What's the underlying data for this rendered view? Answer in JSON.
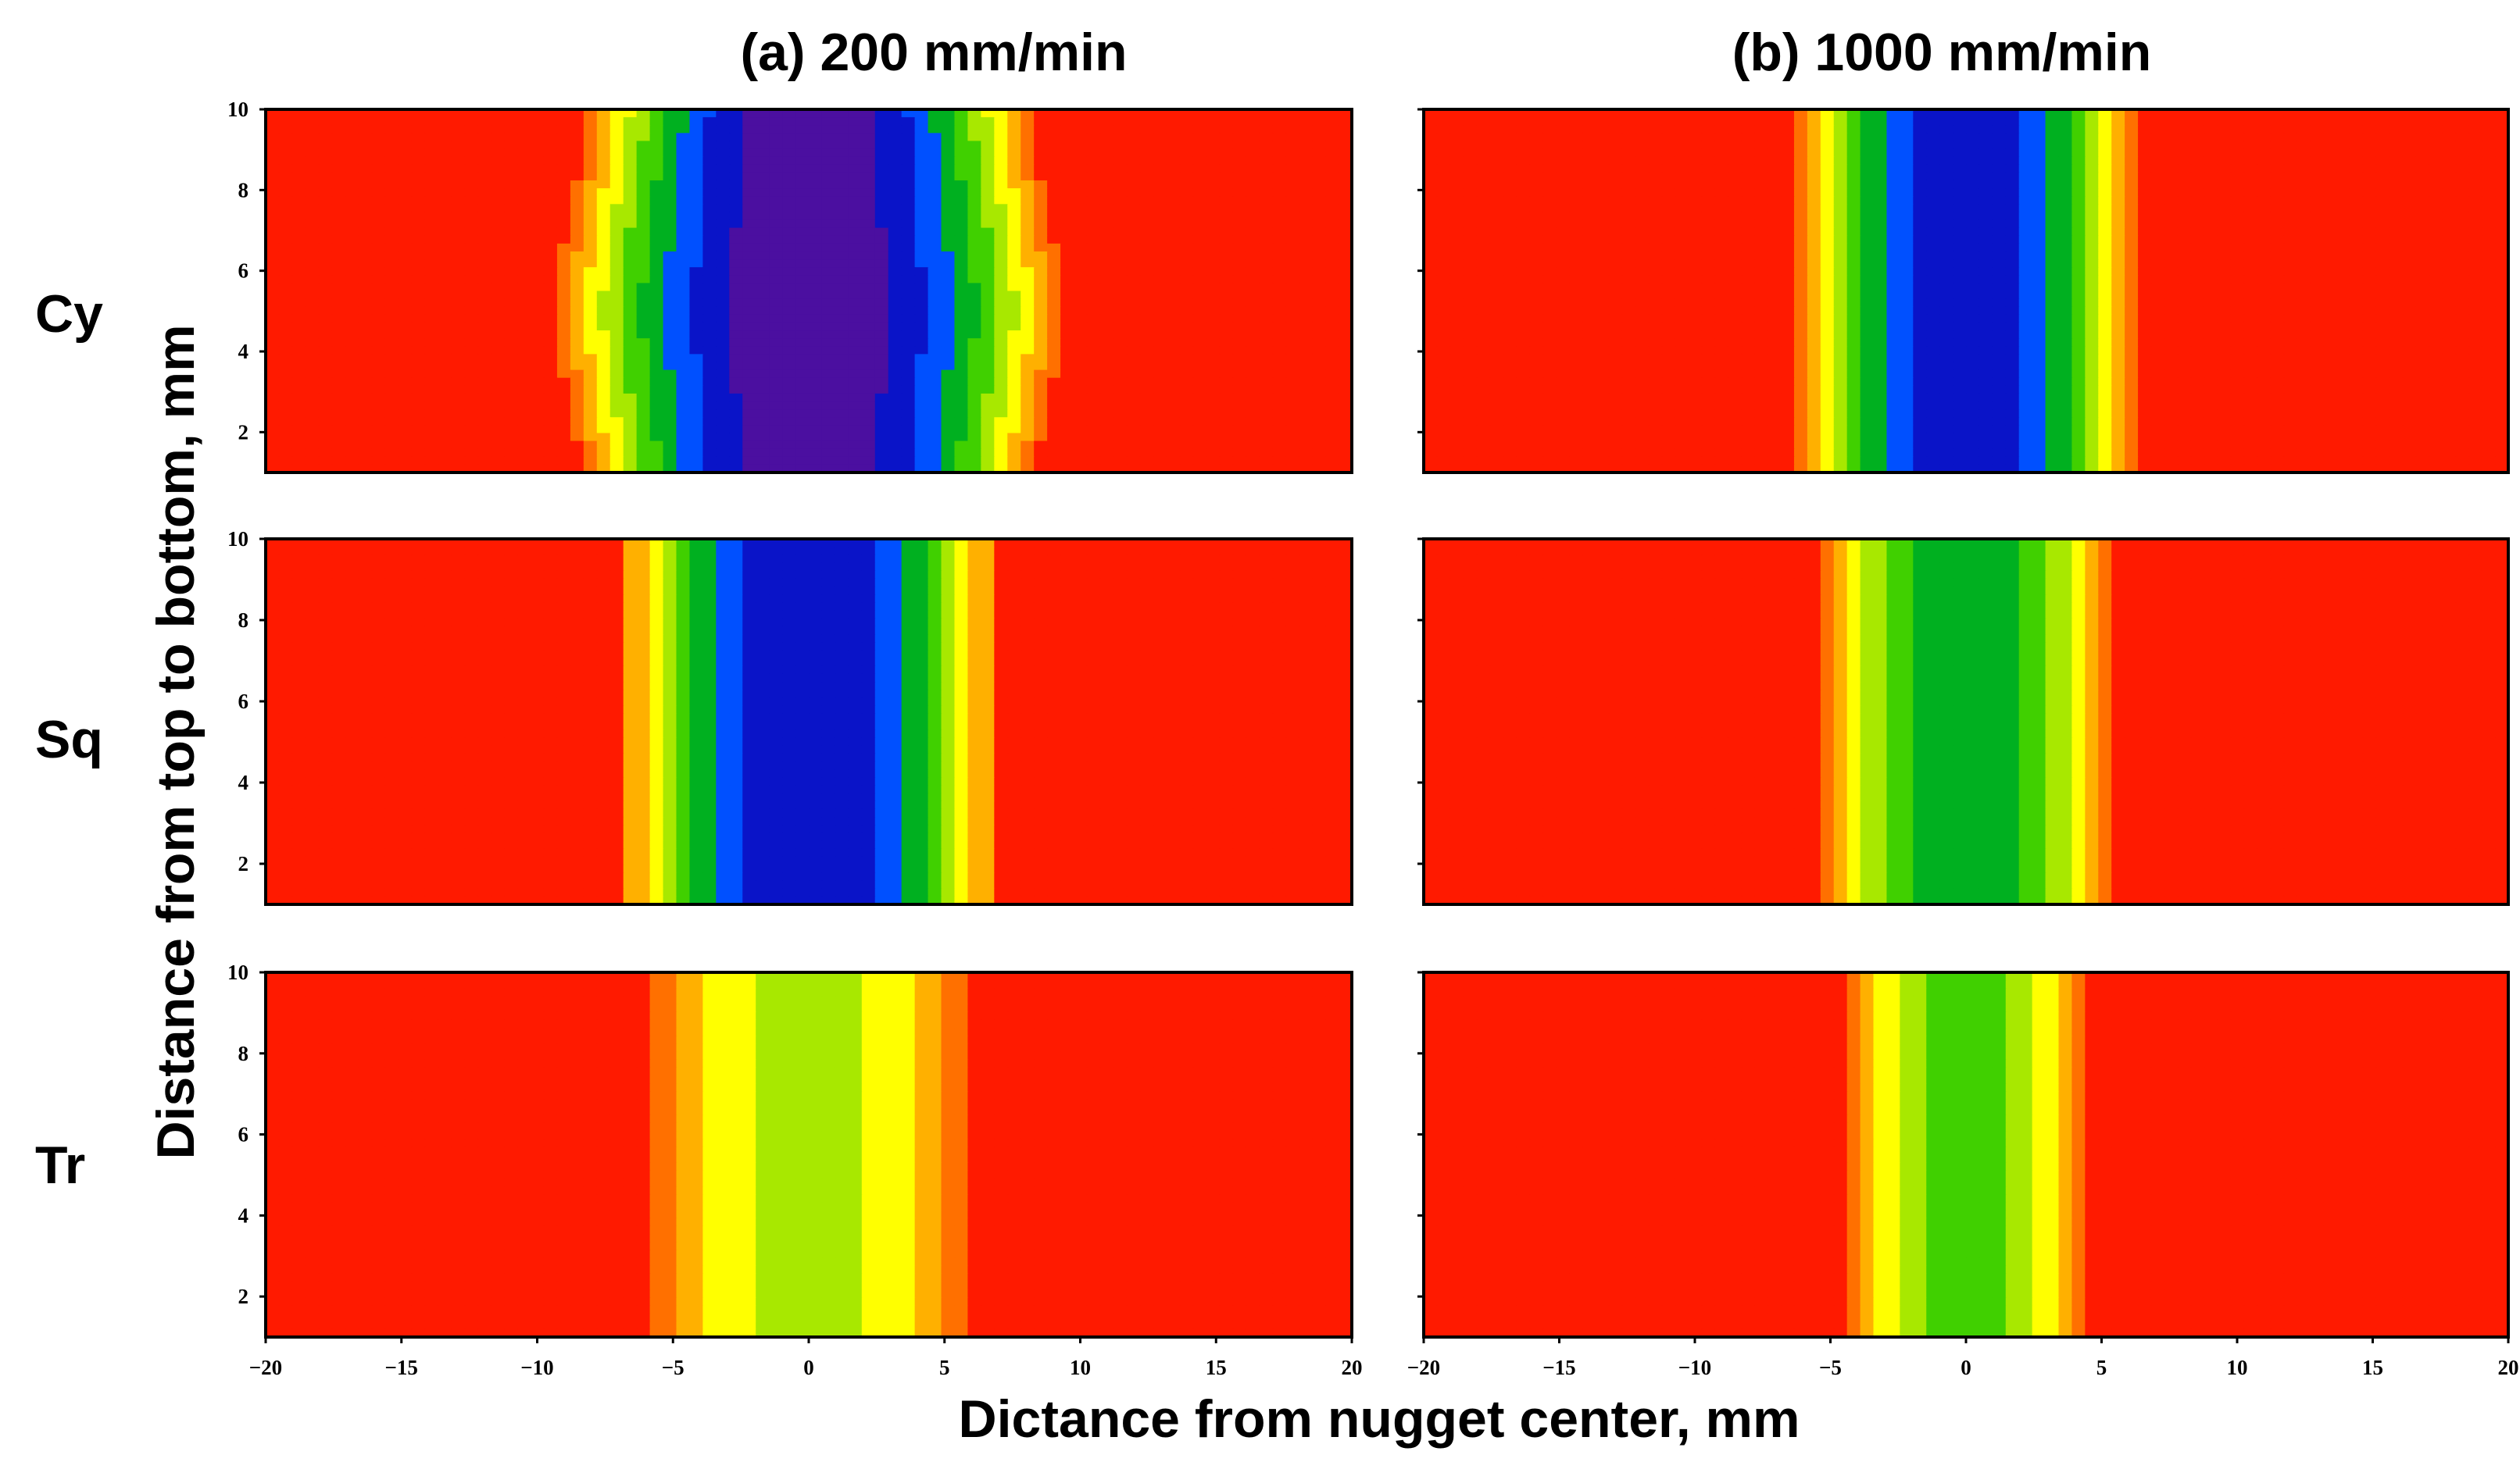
{
  "chart_data": {
    "type": "heatmap",
    "column_titles": [
      "(a) 200 mm/min",
      "(b) 1000 mm/min"
    ],
    "row_labels": [
      "Cy",
      "Sq",
      "Tr"
    ],
    "xlabel": "Dictance from nugget center, mm",
    "ylabel": "Distance from top to bottom, mm",
    "xlim": [
      -20,
      20
    ],
    "ylim": [
      1,
      10
    ],
    "x_ticks": [
      -20,
      -15,
      -10,
      -5,
      0,
      5,
      10,
      15,
      20
    ],
    "x_tick_labels": [
      "−20",
      "−15",
      "−10",
      "−5",
      "0",
      "5",
      "10",
      "15",
      "20"
    ],
    "y_ticks": [
      2,
      4,
      6,
      8,
      10
    ],
    "y_tick_labels": [
      "2",
      "4",
      "6",
      "8",
      "10"
    ],
    "colormap": [
      "#4b0fa0",
      "#0a14c8",
      "#0050ff",
      "#00b020",
      "#40d000",
      "#a8e800",
      "#ffff00",
      "#ffb000",
      "#ff7000",
      "#ff1a00"
    ],
    "value_range": [
      0,
      1
    ],
    "panels": [
      {
        "column": "(a) 200 mm/min",
        "row": "Cy",
        "inner": 10,
        "outer": 8.5,
        "low": 0.02
      },
      {
        "column": "(b) 1000 mm/min",
        "row": "Cy",
        "inner": 6.5,
        "outer": 6.5,
        "low": 0.12
      },
      {
        "column": "(a) 200 mm/min",
        "row": "Sq",
        "inner": 7.5,
        "outer": 7.5,
        "low": 0.12
      },
      {
        "column": "(b) 1000 mm/min",
        "row": "Sq",
        "inner": 6,
        "outer": 6,
        "low": 0.32
      },
      {
        "column": "(a) 200 mm/min",
        "row": "Tr",
        "inner": 6.5,
        "outer": 6.5,
        "low": 0.55
      },
      {
        "column": "(b) 1000 mm/min",
        "row": "Tr",
        "inner": 5,
        "outer": 5,
        "low": 0.45
      }
    ]
  }
}
